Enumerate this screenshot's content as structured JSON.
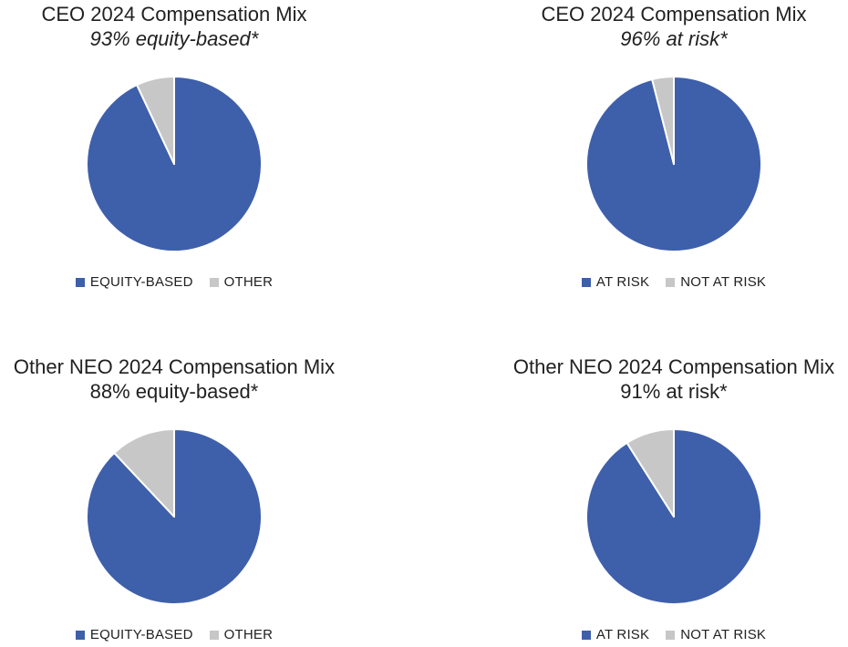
{
  "page": {
    "background": "#ffffff",
    "text_color": "#212121"
  },
  "colors": {
    "pie_blue": "#3E5FAA",
    "pie_gray": "#C7C7C7",
    "slice_border": "#FFFFFF"
  },
  "chart_data": [
    {
      "type": "pie",
      "title": "CEO 2024 Compensation Mix",
      "subtitle": "93% equity-based*",
      "subtitle_style": "italic",
      "legend_position": "bottom",
      "start_angle_deg": 0,
      "direction": "clockwise",
      "slices": [
        {
          "label": "EQUITY-BASED",
          "value": 93,
          "color": "#3E5FAA"
        },
        {
          "label": "OTHER",
          "value": 7,
          "color": "#C7C7C7"
        }
      ]
    },
    {
      "type": "pie",
      "title": "CEO 2024 Compensation Mix",
      "subtitle": "96% at risk*",
      "subtitle_style": "italic",
      "legend_position": "bottom",
      "start_angle_deg": 0,
      "direction": "clockwise",
      "slices": [
        {
          "label": "AT RISK",
          "value": 96,
          "color": "#3E5FAA"
        },
        {
          "label": "NOT AT RISK",
          "value": 4,
          "color": "#C7C7C7"
        }
      ]
    },
    {
      "type": "pie",
      "title": "Other NEO 2024 Compensation Mix",
      "subtitle": "88% equity-based*",
      "subtitle_style": "normal",
      "legend_position": "bottom",
      "start_angle_deg": 0,
      "direction": "clockwise",
      "slices": [
        {
          "label": "EQUITY-BASED",
          "value": 88,
          "color": "#3E5FAA"
        },
        {
          "label": "OTHER",
          "value": 12,
          "color": "#C7C7C7"
        }
      ]
    },
    {
      "type": "pie",
      "title": "Other NEO 2024 Compensation Mix",
      "subtitle": "91% at risk*",
      "subtitle_style": "normal",
      "legend_position": "bottom",
      "start_angle_deg": 0,
      "direction": "clockwise",
      "slices": [
        {
          "label": "AT RISK",
          "value": 91,
          "color": "#3E5FAA"
        },
        {
          "label": "NOT AT RISK",
          "value": 9,
          "color": "#C7C7C7"
        }
      ]
    }
  ]
}
